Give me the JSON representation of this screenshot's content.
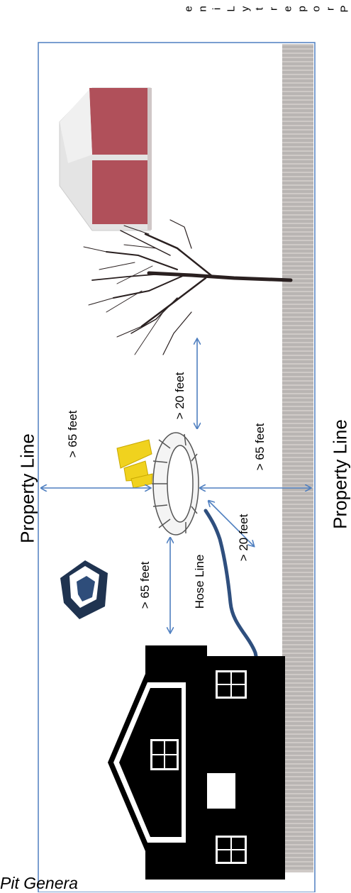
{
  "labels": {
    "property_line_top": "Property Line",
    "property_line_bottom": "Property Line",
    "dist_top": "> 65 feet",
    "dist_right": "> 65 feet",
    "dist_tree": "> 20 feet",
    "dist_hose": "> 20 feet",
    "dist_house": "> 65 feet",
    "hose_line": "Hose Line",
    "caption": "Pit Genera",
    "edge_letters": [
      "P",
      "r",
      "o",
      "p",
      "e",
      "r",
      "t",
      "y",
      "L",
      "i",
      "n",
      "e"
    ]
  },
  "colors": {
    "border": "#4f7fc0",
    "arrow": "#4f7fc0",
    "hose": "#2f4f7e",
    "barn_red": "#b0505a",
    "barn_white": "#e4e4e4",
    "fence": "#b9b5b3",
    "house": "#000000",
    "chair": "#f0d21e"
  }
}
